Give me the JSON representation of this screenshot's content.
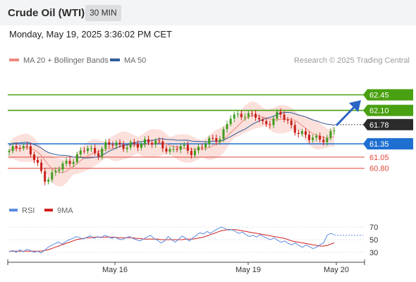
{
  "header": {
    "instrument": "Crude Oil (WTI)",
    "timeframe": "30 MIN"
  },
  "datetime": "Monday, May 19, 2025 3:36:02 PM CET",
  "legend": [
    {
      "label": "MA 20 + Bollinger Bands",
      "color": "#f08a7e"
    },
    {
      "label": "MA 50",
      "color": "#2f5c99"
    }
  ],
  "credit": "Research © 2025 Trading Central",
  "chart_data": [
    {
      "type": "line",
      "subtype": "candlestick",
      "dates": [
        "May 16",
        "May 19",
        "May 20"
      ],
      "last_price": 61.78,
      "levels": [
        {
          "value": 62.45,
          "label": "62.45",
          "kind": "resistance",
          "color": "#49a010",
          "badge": true
        },
        {
          "value": 62.1,
          "label": "62.10",
          "kind": "resistance",
          "color": "#49a010",
          "badge": true
        },
        {
          "value": 61.78,
          "label": "61.78",
          "kind": "last",
          "color": "#2b2b2b",
          "badge": true
        },
        {
          "value": 61.35,
          "label": "61.35",
          "kind": "pivot",
          "color": "#1f6fd1",
          "badge": true
        },
        {
          "value": 61.05,
          "label": "61.05",
          "kind": "support",
          "color": "#e0463c",
          "badge": false
        },
        {
          "value": 60.8,
          "label": "60.80",
          "kind": "support",
          "color": "#e0463c",
          "badge": false
        }
      ],
      "arrow": "up",
      "indicators": [
        "MA 20 + Bollinger Bands",
        "MA 50"
      ]
    },
    {
      "type": "line",
      "legend": [
        {
          "label": "RSI",
          "color": "#5b8ce0"
        },
        {
          "label": "9MA",
          "color": "#d21f1f"
        }
      ],
      "y_ticks": [
        "70",
        "50",
        "30"
      ],
      "ylim": [
        20,
        80
      ],
      "rsi": [
        31,
        33,
        30,
        34,
        31,
        35,
        33,
        30,
        32,
        29,
        33,
        38,
        41,
        44,
        46,
        43,
        47,
        50,
        52,
        55,
        53,
        51,
        54,
        56,
        52,
        55,
        53,
        57,
        55,
        52,
        54,
        51,
        50,
        53,
        55,
        52,
        50,
        48,
        51,
        54,
        57,
        52,
        49,
        45,
        48,
        55,
        50,
        46,
        51,
        56,
        52,
        48,
        53,
        57,
        61,
        59,
        63,
        60,
        64,
        67,
        70,
        68,
        65,
        66,
        63,
        60,
        62,
        58,
        55,
        57,
        54,
        58,
        55,
        52,
        50,
        53,
        49,
        46,
        48,
        44,
        42,
        45,
        41,
        38,
        42,
        39,
        36,
        38,
        42,
        45,
        57,
        60,
        58
      ],
      "ma9": [
        32,
        32,
        32,
        32,
        32,
        32,
        32,
        32,
        32,
        32,
        33,
        34,
        36,
        38,
        40,
        42,
        44,
        46,
        48,
        50,
        51,
        52,
        53,
        53,
        54,
        54,
        54,
        54,
        54,
        54,
        54,
        53,
        53,
        53,
        53,
        53,
        52,
        52,
        51,
        51,
        51,
        51,
        51,
        50,
        50,
        50,
        50,
        50,
        50,
        50,
        51,
        51,
        51,
        52,
        53,
        54,
        56,
        58,
        60,
        62,
        64,
        65,
        66,
        66,
        66,
        65,
        64,
        63,
        62,
        61,
        60,
        59,
        58,
        57,
        56,
        55,
        54,
        53,
        52,
        50,
        48,
        47,
        46,
        45,
        44,
        43,
        42,
        41,
        40,
        40,
        41,
        43,
        45
      ],
      "rsi_projection": 57
    }
  ]
}
